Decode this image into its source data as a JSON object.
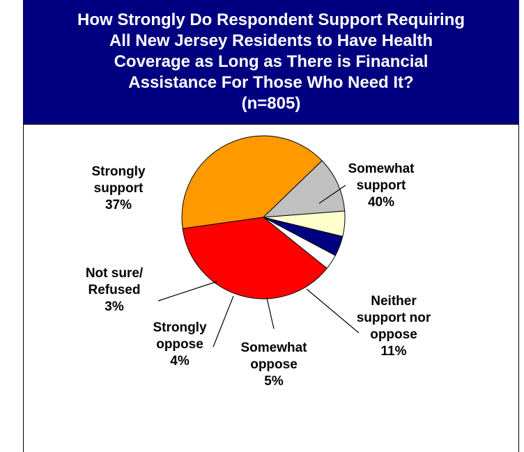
{
  "title_lines": [
    "How Strongly Do Respondent Support Requiring",
    "All New Jersey Residents to Have Health",
    "Coverage as Long as There is Financial",
    "Assistance For Those Who Need It?",
    "(n=805)"
  ],
  "colors": {
    "title_bg": "#000080",
    "title_text": "#ffffff"
  },
  "chart_data": {
    "type": "pie",
    "title": "How Strongly Do Respondent Support Requiring All New Jersey Residents to Have Health Coverage as Long as There is Financial Assistance For Those Who Need It? (n=805)",
    "slices": [
      {
        "label": "Somewhat support",
        "label_lines": [
          "Somewhat",
          "support",
          "40%"
        ],
        "value": 40,
        "color": "#FF9900"
      },
      {
        "label": "Neither support nor oppose",
        "label_lines": [
          "Neither",
          "support nor",
          "oppose",
          "11%"
        ],
        "value": 11,
        "color": "#C0C0C0"
      },
      {
        "label": "Somewhat oppose",
        "label_lines": [
          "Somewhat",
          "oppose",
          "5%"
        ],
        "value": 5,
        "color": "#FFFFCC"
      },
      {
        "label": "Strongly oppose",
        "label_lines": [
          "Strongly",
          "oppose",
          "4%"
        ],
        "value": 4,
        "color": "#000080"
      },
      {
        "label": "Not sure/ Refused",
        "label_lines": [
          "Not sure/",
          "Refused",
          "3%"
        ],
        "value": 3,
        "color": "#FFFFFF"
      },
      {
        "label": "Strongly support",
        "label_lines": [
          "Strongly",
          "support",
          "37%"
        ],
        "value": 37,
        "color": "#FF0000"
      }
    ]
  }
}
